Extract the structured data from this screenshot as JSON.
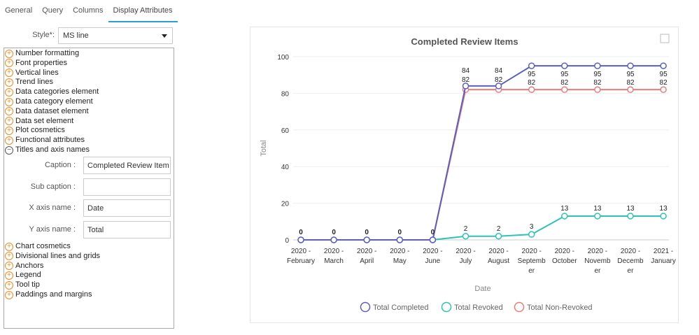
{
  "tabs": [
    "General",
    "Query",
    "Columns",
    "Display Attributes"
  ],
  "style_label": "Style*:",
  "style_value": "MS line",
  "sections_top": [
    "Number formatting",
    "Font properties",
    "Vertical lines",
    "Trend lines",
    "Data categories element",
    "Data category element",
    "Data dataset element",
    "Data set element",
    "Plot cosmetics",
    "Functional attributes"
  ],
  "expanded_section": "Titles and axis names",
  "fields": [
    {
      "label": "Caption :",
      "value": "Completed Review Item"
    },
    {
      "label": "Sub caption :",
      "value": ""
    },
    {
      "label": "X axis name :",
      "value": "Date"
    },
    {
      "label": "Y axis name :",
      "value": "Total"
    }
  ],
  "sections_bottom": [
    "Chart cosmetics",
    "Divisional lines and grids",
    "Anchors",
    "Legend",
    "Tool tip",
    "Paddings and margins"
  ],
  "chart_data": {
    "type": "line",
    "title": "Completed Review Items",
    "xlabel": "Date",
    "ylabel": "Total",
    "ylim": [
      0,
      100
    ],
    "yticks": [
      0,
      20,
      40,
      60,
      80,
      100
    ],
    "categories": [
      [
        "2020 -",
        "February"
      ],
      [
        "2020 -",
        "March"
      ],
      [
        "2020 -",
        "April"
      ],
      [
        "2020 -",
        "May"
      ],
      [
        "2020 -",
        "June"
      ],
      [
        "2020 -",
        "July"
      ],
      [
        "2020 -",
        "August"
      ],
      [
        "2020 -",
        "Septemb",
        "er"
      ],
      [
        "2020 -",
        "October"
      ],
      [
        "2020 -",
        "Novemb",
        "er"
      ],
      [
        "2020 -",
        "Decemb",
        "er"
      ],
      [
        "2021 -",
        "January"
      ]
    ],
    "series": [
      {
        "name": "Total Completed",
        "color": "#5c5fc0",
        "values": [
          0,
          0,
          0,
          0,
          0,
          84,
          84,
          95,
          95,
          95,
          95,
          95
        ]
      },
      {
        "name": "Total Revoked",
        "color": "#2bc4b6",
        "values": [
          0,
          0,
          0,
          0,
          0,
          2,
          2,
          3,
          13,
          13,
          13,
          13
        ]
      },
      {
        "name": "Total Non-Revoked",
        "color": "#f07a7a",
        "values": [
          0,
          0,
          0,
          0,
          0,
          82,
          82,
          82,
          82,
          82,
          82,
          82
        ]
      }
    ],
    "legend": "bottom"
  }
}
